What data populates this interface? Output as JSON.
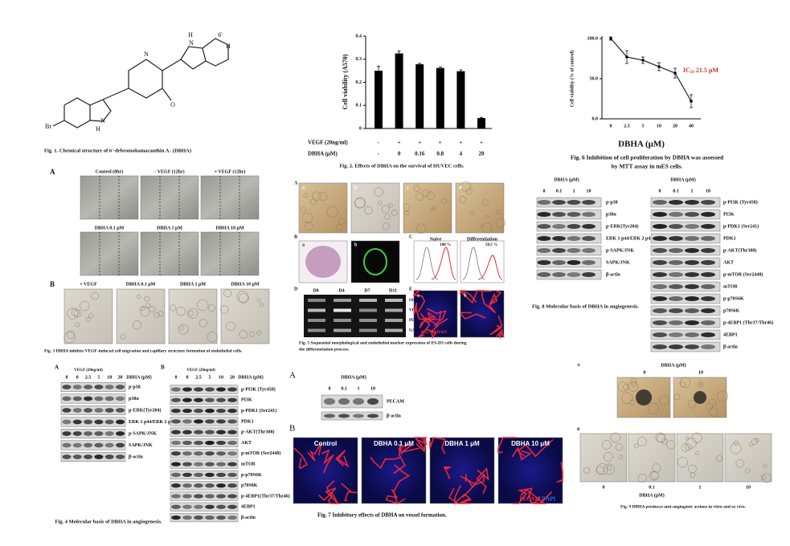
{
  "fig1": {
    "caption": "Fig. 1.  Chemical structure of 6'-debromohamacanthin A . (DBHA)",
    "atoms": [
      "Br",
      "H",
      "N",
      "N",
      "O",
      "N",
      "H",
      "6'",
      "H"
    ]
  },
  "fig2": {
    "type": "bar",
    "y_label": "Cell viability (A570)",
    "ylim": [
      0,
      0.4
    ],
    "yticks": [
      0,
      0.1,
      0.2,
      0.3,
      0.4
    ],
    "values": [
      0.25,
      0.325,
      0.278,
      0.262,
      0.248,
      0.045
    ],
    "errors": [
      0.02,
      0.01,
      0.004,
      0.005,
      0.006,
      0.003
    ],
    "color": "#000000",
    "conditions": [
      {
        "label": "VEGF (20ng/ml)",
        "values": [
          "-",
          "+",
          "+",
          "+",
          "+",
          "+"
        ]
      },
      {
        "label": "DBHA (μM)",
        "values": [
          "-",
          "0",
          "0.16",
          "0.8",
          "4",
          "20"
        ]
      }
    ],
    "caption": "Fig. 2. Effects of DBHA on the survival of HUVEC cells."
  },
  "fig3": {
    "panel_a": "A",
    "a_labels": [
      "Control (0hr)",
      "- VEGF  (12hr)",
      "+ VEGF  (12hr)",
      "DBHA 0.1 μM",
      "DBHA 1 μM",
      "DBHA 10 μM"
    ],
    "panel_b": "B",
    "b_labels": [
      "+ VEGF",
      "DBHA 0.1 μM",
      "DBHA 1 μM",
      "DBHA 10 μM"
    ],
    "caption": "Fig. 3 DBHA inhibits VEGF-induced cell migration and capillary structure formation of endothelial cells."
  },
  "fig4": {
    "A": {
      "panel": "A",
      "treatment": "VEGF (20ng/ml)",
      "dose_label": "DBHA (μM)",
      "lanes": [
        "0",
        "0",
        "2.5",
        "5",
        "10",
        "20"
      ],
      "rows": [
        "p-p38",
        "p38α",
        "p-ERK(Tyr204)",
        "ERK 1 p44/ERK 2 p42",
        "p-SAPK/JNK",
        "SAPK/JNK",
        "β-actin"
      ]
    },
    "B": {
      "panel": "B",
      "treatment": "VEGF (20ng/ml)",
      "dose_label": "DBHA (μM)",
      "lanes": [
        "0",
        "0",
        "2.5",
        "5",
        "10",
        "20"
      ],
      "rows": [
        "p-PI3K (Tyr458)",
        "PI3K",
        "p-PDK1 (Ser241)",
        "PDK1",
        "p-AKT(Thr308)",
        "AKT",
        "p-mTOR (Ser2448)",
        "mTOR",
        "p-p70S6K",
        "p70S6K",
        "p-4EBP1(Thr37/Thr46)",
        "4EBP1",
        "β-actin"
      ]
    },
    "caption": "Fig. 4 Molecular basis of DBHA in angiogenesis."
  },
  "fig5": {
    "panel_a": "A",
    "a_sub": [
      "a",
      "b",
      "c",
      "d"
    ],
    "panel_b": "B",
    "b_sub": [
      "a",
      "b"
    ],
    "panel_c": "C",
    "histograms": [
      {
        "name": "Naive",
        "pct": "100 %"
      },
      {
        "name": "Differentiation",
        "pct": "50.5 %"
      }
    ],
    "panel_d": "D",
    "days": [
      "D0",
      "D4",
      "D7",
      "D11"
    ],
    "genes": [
      "OCT4",
      "VEGFR2",
      "PECAM",
      "GAPDH"
    ],
    "panel_e": "E",
    "e_sub": [
      "a",
      "b"
    ],
    "e_stain": "PECAM/DAPI",
    "caption": [
      "Fig. 5 Sequential morphological and endothelial marker expression of ES-D3 cells during",
      "the differentiation process."
    ]
  },
  "fig6": {
    "type": "line",
    "y_label": "Cell viability (% of control)",
    "x_label": "DBHA  (μM)",
    "categories": [
      "0",
      "2.5",
      "5",
      "10",
      "20",
      "40"
    ],
    "values": [
      100,
      77,
      73,
      65,
      57,
      22
    ],
    "errors": [
      2,
      8,
      4,
      5,
      6,
      8
    ],
    "color": "#000000",
    "ylim": [
      0,
      100
    ],
    "yticks": [
      {
        "value": 0,
        "label": "0.0"
      },
      {
        "value": 50,
        "label": "50.0"
      },
      {
        "value": 100,
        "label": "100.0"
      }
    ],
    "annotation": {
      "text": "IC",
      "sub": "50",
      "rest": " 21.5 μM",
      "color": "#c0392b"
    },
    "caption": [
      "Fig. 6 Inhibition of cell proliferation by DBHA was assessed",
      "by MTT assay in mES cells."
    ]
  },
  "fig7": {
    "panel_a": "A",
    "dose_label": "DBHA (μM)",
    "lanes": [
      "0",
      "0.1",
      "1",
      "10"
    ],
    "rows": [
      "PECAM",
      "β-actin"
    ],
    "panel_b": "B",
    "images": [
      "Control",
      "DBHA  0.1 μM",
      "DBHA  1 μM",
      "DBHA  10 μM"
    ],
    "stain": [
      "PECAM",
      "DAPI"
    ],
    "caption": "Fig. 7 Inhibitory effects of DBHA on vessel formation."
  },
  "fig8": {
    "left": {
      "dose_label": "DBHA (μM)",
      "lanes": [
        "0",
        "0.1",
        "1",
        "10"
      ],
      "rows": [
        "p-p38",
        "p38α",
        "p-ERK(Tyr204)",
        "ERK 1 p44/ERK 2 p42",
        "p-SAPK/JNK",
        "SAPK/JNK",
        "β-actin"
      ]
    },
    "right": {
      "dose_label": "DBHA (μM)",
      "lanes": [
        "0",
        "0.1",
        "1",
        "10"
      ],
      "rows": [
        "p-PI3K (Tyr458)",
        "PI3K",
        "p-PDK1 (Ser241)",
        "PDK1",
        "p-AKT(Thr308)",
        "AKT",
        "p-mTOR (Ser2448)",
        "mTOR",
        "p-p70S6K",
        "p70S6K",
        "p-4EBP1 (Thr37/Thr46)",
        "4EBP1",
        "β-actin"
      ]
    },
    "caption": "Fig. 8 Molecular basis of DBHA in angiogenesis."
  },
  "fig9": {
    "panel_a": "A",
    "a_dose_label": "DBHA (μM)",
    "a_lanes": [
      "0",
      "10"
    ],
    "panel_b": "B",
    "b_lanes": [
      "0",
      "0.1",
      "1",
      "10"
    ],
    "b_dose_label": "DBHA (μM)",
    "caption": "Fig. 9 DBHA produces anti-angiogenic actions in vitro and ex vivo."
  }
}
